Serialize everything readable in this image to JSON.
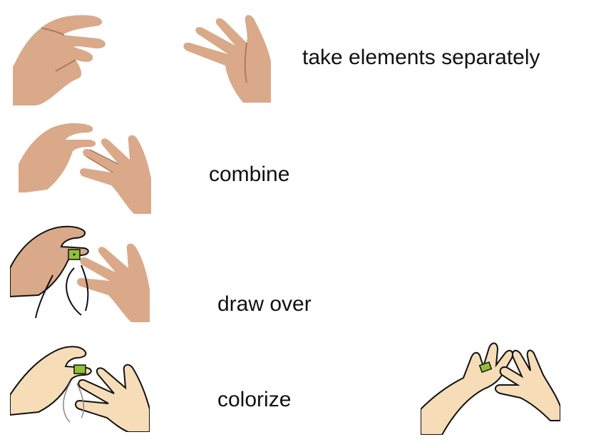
{
  "steps": [
    {
      "label": "take elements separately"
    },
    {
      "label": "combine"
    },
    {
      "label": "draw over"
    },
    {
      "label": "colorize"
    }
  ],
  "colors": {
    "photo_skin": "#d9a989",
    "photo_shadow": "#b07a60",
    "drawn_skin": "#f6dcb7",
    "outline": "#111111",
    "element_green": "#8fc233"
  },
  "icons": [
    "open-hand-photo-icon",
    "flat-palm-photo-icon",
    "combined-hands-photo-icon",
    "traced-hands-photo-icon",
    "colorized-hands-drawing-icon",
    "colorized-hands-final-drawing-icon"
  ]
}
